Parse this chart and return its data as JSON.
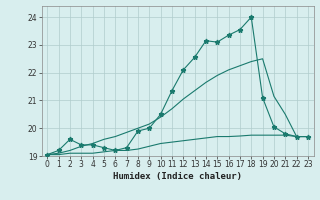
{
  "xlabel": "Humidex (Indice chaleur)",
  "x_values": [
    0,
    1,
    2,
    3,
    4,
    5,
    6,
    7,
    8,
    9,
    10,
    11,
    12,
    13,
    14,
    15,
    16,
    17,
    18,
    19,
    20,
    21,
    22,
    23
  ],
  "line_main": [
    19.05,
    19.2,
    19.6,
    19.4,
    19.4,
    19.3,
    19.2,
    19.3,
    19.9,
    20.0,
    20.5,
    21.35,
    22.1,
    22.55,
    23.15,
    23.1,
    23.35,
    23.55,
    24.0,
    21.1,
    20.05,
    19.8,
    19.7,
    19.7
  ],
  "line_upper": [
    19.05,
    19.1,
    19.2,
    19.35,
    19.45,
    19.6,
    19.7,
    19.85,
    20.0,
    20.15,
    20.4,
    20.7,
    21.05,
    21.35,
    21.65,
    21.9,
    22.1,
    22.25,
    22.4,
    22.5,
    21.15,
    20.5,
    19.7,
    19.7
  ],
  "line_lower": [
    19.05,
    19.05,
    19.1,
    19.1,
    19.1,
    19.15,
    19.2,
    19.2,
    19.25,
    19.35,
    19.45,
    19.5,
    19.55,
    19.6,
    19.65,
    19.7,
    19.7,
    19.72,
    19.75,
    19.75,
    19.75,
    19.75,
    19.7,
    19.7
  ],
  "ylim": [
    19.0,
    24.4
  ],
  "xlim": [
    -0.5,
    23.5
  ],
  "yticks": [
    19,
    20,
    21,
    22,
    23,
    24
  ],
  "xticks": [
    0,
    1,
    2,
    3,
    4,
    5,
    6,
    7,
    8,
    9,
    10,
    11,
    12,
    13,
    14,
    15,
    16,
    17,
    18,
    19,
    20,
    21,
    22,
    23
  ],
  "line_color": "#1a7a6e",
  "bg_color": "#d8eeee",
  "grid_color": "#b0cccc",
  "axes_color": "#888888"
}
